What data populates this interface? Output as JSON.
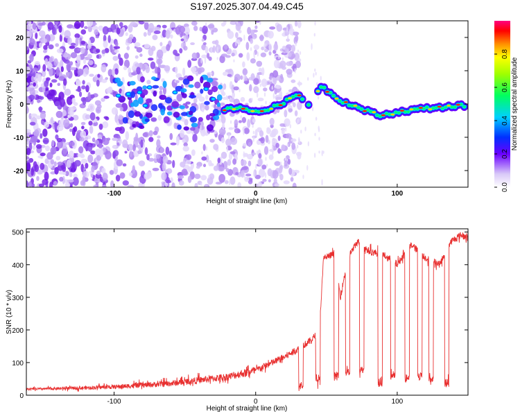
{
  "title": "S197.2025.307.04.49.C45",
  "chart_data": [
    {
      "type": "heatmap",
      "xlabel": "Height of straight line (km)",
      "ylabel": "Frequency (Hz)",
      "xlim": [
        -162,
        150
      ],
      "ylim": [
        -25,
        25
      ],
      "xticks": [
        -100,
        0,
        100
      ],
      "yticks": [
        -20,
        -10,
        0,
        10,
        20
      ],
      "colorbar": {
        "label": "Normalized spectral amplitude",
        "range": [
          0,
          1
        ],
        "ticks": [
          0.0,
          0.2,
          0.4,
          0.6,
          0.8
        ]
      },
      "ridge": [
        [
          -22,
          -1.5
        ],
        [
          -10,
          -1.0
        ],
        [
          0,
          -2.5
        ],
        [
          10,
          -1.5
        ],
        [
          20,
          0.5
        ],
        [
          30,
          3.0
        ],
        [
          38,
          -0.5
        ],
        [
          46,
          5.5
        ],
        [
          60,
          1.0
        ],
        [
          75,
          -1.5
        ],
        [
          88,
          -3.5
        ],
        [
          100,
          -2.5
        ],
        [
          115,
          -1.5
        ],
        [
          130,
          -1.0
        ],
        [
          145,
          -0.5
        ]
      ]
    },
    {
      "type": "line",
      "xlabel": "Height of straight line (km)",
      "ylabel": "SNR (10 * v/v)",
      "xlim": [
        -162,
        150
      ],
      "ylim": [
        0,
        510
      ],
      "xticks": [
        -100,
        0,
        100
      ],
      "yticks": [
        0,
        100,
        200,
        300,
        400,
        500
      ],
      "series_color": "#e83030",
      "envelope": [
        [
          -162,
          18
        ],
        [
          -140,
          20
        ],
        [
          -120,
          22
        ],
        [
          -100,
          25
        ],
        [
          -80,
          30
        ],
        [
          -60,
          35
        ],
        [
          -40,
          45
        ],
        [
          -20,
          55
        ],
        [
          0,
          75
        ],
        [
          10,
          95
        ],
        [
          20,
          115
        ],
        [
          30,
          140
        ],
        [
          40,
          170
        ],
        [
          45,
          200
        ],
        [
          48,
          420
        ],
        [
          55,
          430
        ],
        [
          60,
          300
        ],
        [
          65,
          420
        ],
        [
          72,
          470
        ],
        [
          80,
          440
        ],
        [
          90,
          430
        ],
        [
          100,
          400
        ],
        [
          110,
          460
        ],
        [
          120,
          420
        ],
        [
          130,
          400
        ],
        [
          138,
          470
        ],
        [
          145,
          490
        ],
        [
          150,
          480
        ]
      ],
      "dips": [
        [
          32,
          20
        ],
        [
          44,
          40
        ],
        [
          57,
          50
        ],
        [
          65,
          60
        ],
        [
          75,
          70
        ],
        [
          88,
          30
        ],
        [
          97,
          50
        ],
        [
          107,
          40
        ],
        [
          116,
          50
        ],
        [
          124,
          40
        ],
        [
          135,
          30
        ]
      ]
    }
  ]
}
